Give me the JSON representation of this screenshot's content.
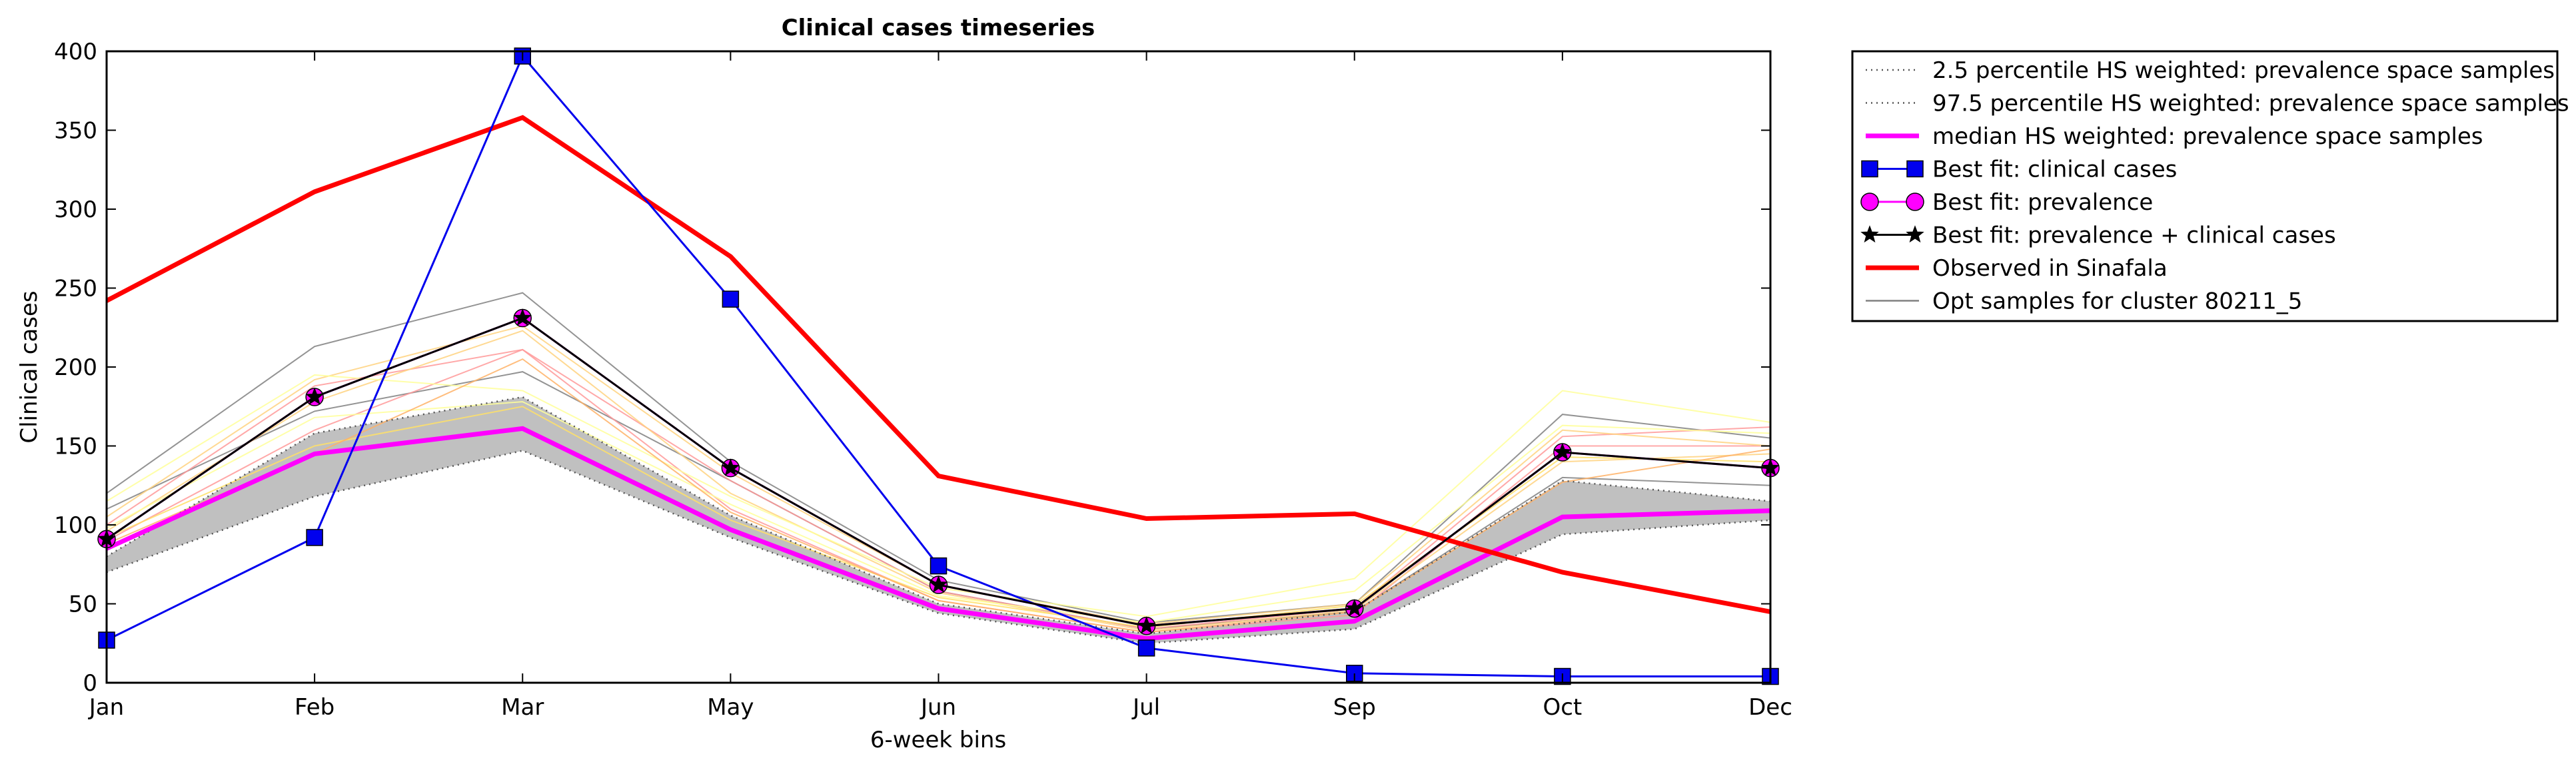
{
  "chart_data": {
    "type": "line",
    "title": "Clinical cases timeseries",
    "xlabel": "6-week bins",
    "ylabel": "Clinical cases",
    "categories": [
      "Jan",
      "Feb",
      "Mar",
      "May",
      "Jun",
      "Jul",
      "Sep",
      "Oct",
      "Dec"
    ],
    "ylim": [
      0,
      400
    ],
    "yticks": [
      0,
      50,
      100,
      150,
      200,
      250,
      300,
      350,
      400
    ],
    "grid": false,
    "legend_position": "outside-right-top",
    "band_color": "#c0c0c0",
    "legend": [
      "2.5 percentile HS weighted: prevalence space samples",
      "97.5 percentile HS weighted: prevalence space samples",
      "median HS weighted: prevalence space samples",
      "Best fit: clinical cases",
      "Best fit: prevalence",
      "Best fit: prevalence + clinical cases",
      "Observed in Sinafala",
      "Opt samples for cluster 80211_5"
    ],
    "series": [
      {
        "name": "2.5 percentile HS weighted: prevalence space samples",
        "color": "#555555",
        "style": "dotted",
        "values": [
          70,
          118,
          147,
          92,
          44,
          25,
          34,
          94,
          103
        ]
      },
      {
        "name": "97.5 percentile HS weighted: prevalence space samples",
        "color": "#555555",
        "style": "dotted",
        "values": [
          80,
          158,
          181,
          106,
          50,
          31,
          45,
          128,
          115
        ]
      },
      {
        "name": "median HS weighted: prevalence space samples",
        "color": "#ff00ff",
        "style": "thick",
        "values": [
          85,
          145,
          161,
          97,
          47,
          28,
          39,
          105,
          109
        ]
      },
      {
        "name": "Best fit: clinical cases",
        "color": "#0000ee",
        "marker": "square",
        "values": [
          27,
          92,
          397,
          243,
          74,
          22,
          6,
          4,
          4
        ]
      },
      {
        "name": "Best fit: prevalence",
        "color": "#ff00ff",
        "marker": "circle",
        "values": [
          91,
          181,
          231,
          136,
          62,
          36,
          47,
          146,
          136
        ]
      },
      {
        "name": "Best fit: prevalence + clinical cases",
        "color": "#000000",
        "marker": "star",
        "values": [
          91,
          181,
          231,
          136,
          62,
          36,
          47,
          146,
          136
        ]
      },
      {
        "name": "Observed in Sinafala",
        "color": "#ff0000",
        "style": "thick",
        "values": [
          242,
          311,
          358,
          270,
          131,
          104,
          107,
          70,
          45
        ]
      }
    ],
    "samples": {
      "name": "Opt samples for cluster 80211_5",
      "lines": [
        {
          "color": "#808080",
          "values": [
            120,
            213,
            247,
            140,
            65,
            38,
            50,
            170,
            155
          ]
        },
        {
          "color": "#808080",
          "values": [
            110,
            172,
            197,
            128,
            58,
            34,
            45,
            130,
            125
          ]
        },
        {
          "color": "#ff9999",
          "values": [
            100,
            188,
            211,
            128,
            58,
            34,
            47,
            156,
            162
          ]
        },
        {
          "color": "#ff9999",
          "values": [
            90,
            160,
            211,
            110,
            52,
            32,
            43,
            150,
            150
          ]
        },
        {
          "color": "#ffd27f",
          "values": [
            105,
            192,
            226,
            133,
            62,
            37,
            50,
            160,
            150
          ]
        },
        {
          "color": "#ffd27f",
          "values": [
            96,
            178,
            223,
            120,
            57,
            33,
            46,
            140,
            145
          ]
        },
        {
          "color": "#ffff99",
          "values": [
            115,
            195,
            185,
            118,
            60,
            42,
            66,
            185,
            165
          ]
        },
        {
          "color": "#ffff99",
          "values": [
            98,
            168,
            178,
            113,
            55,
            38,
            58,
            163,
            158
          ]
        },
        {
          "color": "#ffe066",
          "values": [
            92,
            150,
            175,
            103,
            54,
            35,
            49,
            143,
            140
          ]
        },
        {
          "color": "#ffb266",
          "values": [
            88,
            145,
            205,
            108,
            52,
            32,
            45,
            127,
            148
          ]
        }
      ]
    }
  }
}
